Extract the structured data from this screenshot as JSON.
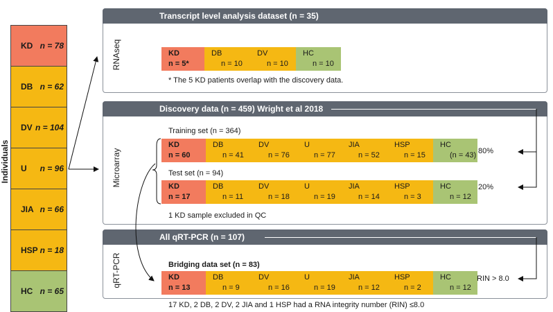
{
  "individuals": {
    "label": "Individuals",
    "groups": [
      {
        "name": "KD",
        "n": "n = 78",
        "color": "#f27b5e"
      },
      {
        "name": "DB",
        "n": "n = 62",
        "color": "#f5b813"
      },
      {
        "name": "DV",
        "n": "n = 104",
        "color": "#f5b813"
      },
      {
        "name": "U",
        "n": "n = 96",
        "color": "#f5b813"
      },
      {
        "name": "JIA",
        "n": "n = 66",
        "color": "#f5b813"
      },
      {
        "name": "HSP",
        "n": "n = 18",
        "color": "#f5b813"
      },
      {
        "name": "HC",
        "n": "n = 65",
        "color": "#a9c474"
      }
    ]
  },
  "rnaseq": {
    "side_label": "RNAseq",
    "title": "Transcript level analysis dataset (n = 35)",
    "cells": [
      {
        "name": "KD",
        "n": "n = 5*"
      },
      {
        "name": "DB",
        "n": "n = 10"
      },
      {
        "name": "DV",
        "n": "n = 10"
      },
      {
        "name": "HC",
        "n": "n = 10"
      }
    ],
    "footnote": "* The 5 KD patients overlap with the discovery data."
  },
  "microarray": {
    "side_label": "Microarray",
    "title": "Discovery data (n = 459) Wright et al 2018",
    "training": {
      "label": "Training set (n = 364)",
      "percent": "80%",
      "cells": [
        {
          "name": "KD",
          "n": "n = 60"
        },
        {
          "name": "DB",
          "n": "n = 41"
        },
        {
          "name": "DV",
          "n": "n = 76"
        },
        {
          "name": "U",
          "n": "n = 77"
        },
        {
          "name": "JIA",
          "n": "n = 52"
        },
        {
          "name": "HSP",
          "n": "n = 15"
        },
        {
          "name": "HC",
          "n": "(n = 43)"
        }
      ]
    },
    "test": {
      "label": "Test set (n = 94)",
      "percent": "20%",
      "cells": [
        {
          "name": "KD",
          "n": "n = 17"
        },
        {
          "name": "DB",
          "n": "n = 11"
        },
        {
          "name": "DV",
          "n": "n = 18"
        },
        {
          "name": "U",
          "n": "n = 19"
        },
        {
          "name": "JIA",
          "n": "n = 14"
        },
        {
          "name": "HSP",
          "n": "n = 3"
        },
        {
          "name": "HC",
          "n": "n = 12"
        }
      ]
    },
    "note": "1 KD sample excluded in QC"
  },
  "qrtpcr": {
    "side_label": "qRT-PCR",
    "title": "All qRT-PCR (n = 107)",
    "bridging": {
      "label": "Bridging data set (n = 83)",
      "threshold": "RIN > 8.0",
      "cells": [
        {
          "name": "KD",
          "n": "n = 13"
        },
        {
          "name": "DB",
          "n": "n = 9"
        },
        {
          "name": "DV",
          "n": "n = 16"
        },
        {
          "name": "U",
          "n": "n = 19"
        },
        {
          "name": "JIA",
          "n": "n = 12"
        },
        {
          "name": "HSP",
          "n": "n = 2"
        },
        {
          "name": "HC",
          "n": "n = 12"
        }
      ]
    },
    "note": "17 KD, 2 DB, 2 DV, 2 JIA and 1 HSP had a RNA integrity number (RIN) ≤8.0"
  },
  "colors": {
    "kd": "#f27b5e",
    "other": "#f5b813",
    "hc": "#a9c474",
    "header": "#5f6670"
  }
}
